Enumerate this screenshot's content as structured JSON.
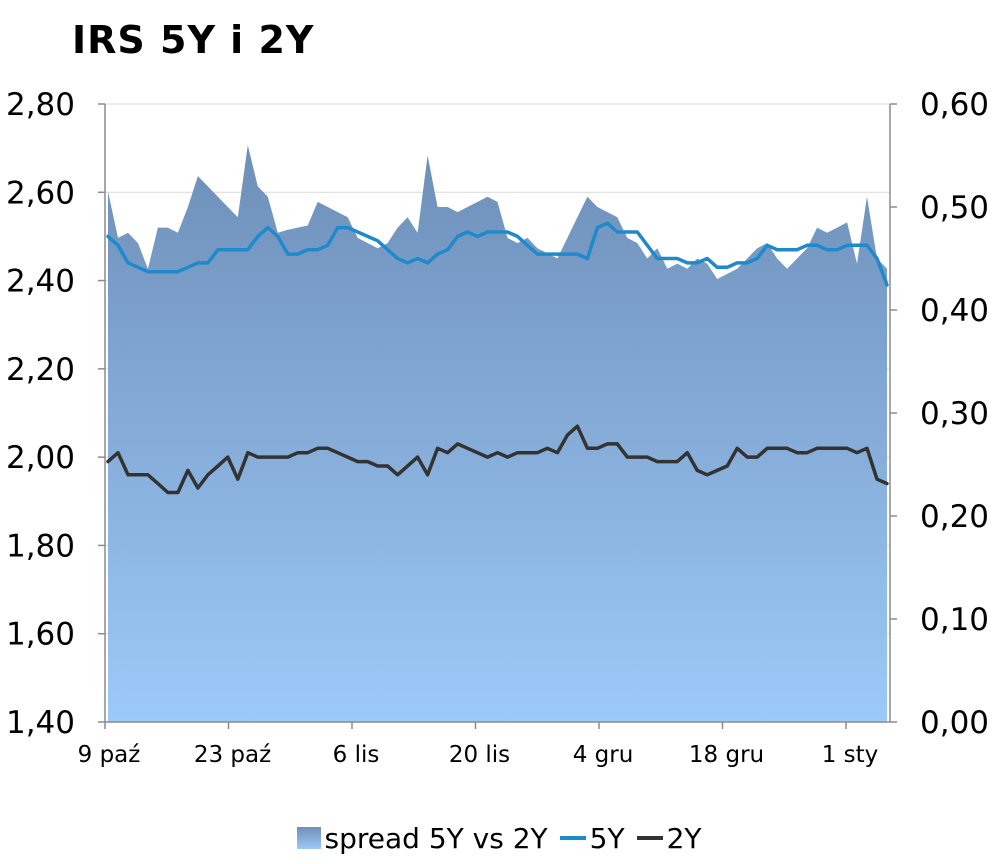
{
  "chart_data": {
    "type": "line",
    "title": "IRS 5Y i 2Y",
    "categories_ticks": [
      "9 paź",
      "23 paź",
      "6 lis",
      "20 lis",
      "4 gru",
      "18 gru",
      "1 sty"
    ],
    "y_left": {
      "ylim": [
        1.4,
        2.8
      ],
      "ticks": [
        "1,40",
        "1,60",
        "1,80",
        "2,00",
        "2,20",
        "2,40",
        "2,60",
        "2,80"
      ]
    },
    "y_right": {
      "ylim": [
        0.0,
        0.6
      ],
      "ticks": [
        "0,00",
        "0,10",
        "0,20",
        "0,30",
        "0,40",
        "0,50",
        "0,60"
      ]
    },
    "grid": "horizontal",
    "legend_position": "bottom",
    "series": [
      {
        "name": "spread 5Y vs 2Y",
        "kind": "area",
        "axis": "right",
        "color": "#7a9cc6",
        "values": [
          0.515,
          0.47,
          0.475,
          0.465,
          0.44,
          0.48,
          0.48,
          0.475,
          0.5,
          0.53,
          0.52,
          0.51,
          0.5,
          0.49,
          0.56,
          0.52,
          0.51,
          0.475,
          0.478,
          0.48,
          0.482,
          0.505,
          0.5,
          0.495,
          0.49,
          0.47,
          0.465,
          0.46,
          0.465,
          0.48,
          0.49,
          0.475,
          0.55,
          0.5,
          0.5,
          0.495,
          0.5,
          0.505,
          0.51,
          0.505,
          0.47,
          0.465,
          0.47,
          0.46,
          0.455,
          0.45,
          0.47,
          0.49,
          0.51,
          0.5,
          0.495,
          0.49,
          0.47,
          0.465,
          0.45,
          0.46,
          0.44,
          0.445,
          0.44,
          0.45,
          0.445,
          0.43,
          0.435,
          0.44,
          0.45,
          0.46,
          0.465,
          0.45,
          0.44,
          0.45,
          0.46,
          0.48,
          0.475,
          0.48,
          0.485,
          0.445,
          0.51,
          0.45,
          0.44
        ]
      },
      {
        "name": "5Y",
        "kind": "line",
        "axis": "left",
        "color": "#1f8acb",
        "values": [
          2.5,
          2.48,
          2.44,
          2.43,
          2.42,
          2.42,
          2.42,
          2.42,
          2.43,
          2.44,
          2.44,
          2.47,
          2.47,
          2.47,
          2.47,
          2.5,
          2.52,
          2.5,
          2.46,
          2.46,
          2.47,
          2.47,
          2.48,
          2.52,
          2.52,
          2.51,
          2.5,
          2.49,
          2.47,
          2.45,
          2.44,
          2.45,
          2.44,
          2.46,
          2.47,
          2.5,
          2.51,
          2.5,
          2.51,
          2.51,
          2.51,
          2.5,
          2.48,
          2.46,
          2.46,
          2.46,
          2.46,
          2.46,
          2.45,
          2.52,
          2.53,
          2.51,
          2.51,
          2.51,
          2.48,
          2.45,
          2.45,
          2.45,
          2.44,
          2.44,
          2.45,
          2.43,
          2.43,
          2.44,
          2.44,
          2.45,
          2.48,
          2.47,
          2.47,
          2.47,
          2.48,
          2.48,
          2.47,
          2.47,
          2.48,
          2.48,
          2.48,
          2.45,
          2.39
        ]
      },
      {
        "name": "2Y",
        "kind": "line",
        "axis": "left",
        "color": "#333333",
        "values": [
          1.99,
          2.01,
          1.96,
          1.96,
          1.96,
          1.94,
          1.92,
          1.92,
          1.97,
          1.93,
          1.96,
          1.98,
          2.0,
          1.95,
          2.01,
          2.0,
          2.0,
          2.0,
          2.0,
          2.01,
          2.01,
          2.02,
          2.02,
          2.01,
          2.0,
          1.99,
          1.99,
          1.98,
          1.98,
          1.96,
          1.98,
          2.0,
          1.96,
          2.02,
          2.01,
          2.03,
          2.02,
          2.01,
          2.0,
          2.01,
          2.0,
          2.01,
          2.01,
          2.01,
          2.02,
          2.01,
          2.05,
          2.07,
          2.02,
          2.02,
          2.03,
          2.03,
          2.0,
          2.0,
          2.0,
          1.99,
          1.99,
          1.99,
          2.01,
          1.97,
          1.96,
          1.97,
          1.98,
          2.02,
          2.0,
          2.0,
          2.02,
          2.02,
          2.02,
          2.01,
          2.01,
          2.02,
          2.02,
          2.02,
          2.02,
          2.01,
          2.02,
          1.95,
          1.94
        ]
      }
    ]
  }
}
